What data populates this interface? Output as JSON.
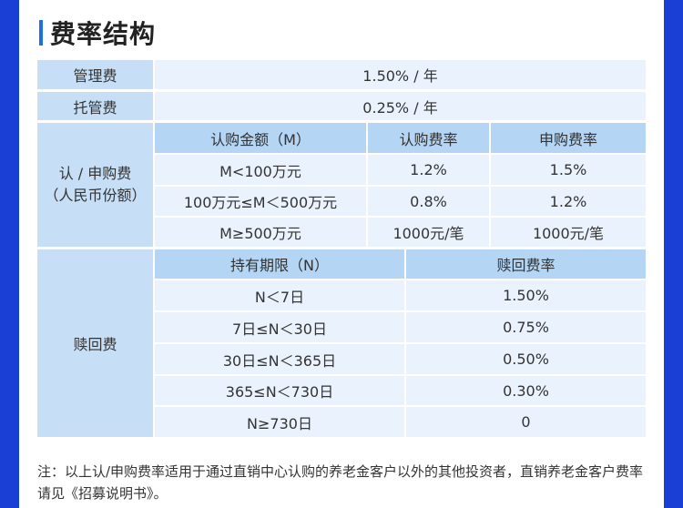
{
  "page": {
    "title": "费率结构",
    "accent_color": "#1e6fe0",
    "background_color": "#1a3fd4"
  },
  "fees": {
    "management": {
      "label": "管理费",
      "value": "1.50% / 年"
    },
    "custody": {
      "label": "托管费",
      "value": "0.25% / 年"
    },
    "subscription": {
      "label_line1": "认 / 申购费",
      "label_line2": "（人民币份额）",
      "headers": [
        "认购金额（M）",
        "认购费率",
        "申购费率"
      ],
      "rows": [
        [
          "M<100万元",
          "1.2%",
          "1.5%"
        ],
        [
          "100万元≤M＜500万元",
          "0.8%",
          "1.2%"
        ],
        [
          "M≥500万元",
          "1000元/笔",
          "1000元/笔"
        ]
      ]
    },
    "redemption": {
      "label": "赎回费",
      "headers": [
        "持有期限（N）",
        "赎回费率"
      ],
      "rows": [
        [
          "N＜7日",
          "1.50%"
        ],
        [
          "7日≤N＜30日",
          "0.75%"
        ],
        [
          "30日≤N＜365日",
          "0.50%"
        ],
        [
          "365≤N＜730日",
          "0.30%"
        ],
        [
          "N≥730日",
          "0"
        ]
      ]
    }
  },
  "note": "注：以上认/申购费率适用于通过直销中心认购的养老金客户以外的其他投资者，直销养老金客户费率请见《招募说明书》。"
}
